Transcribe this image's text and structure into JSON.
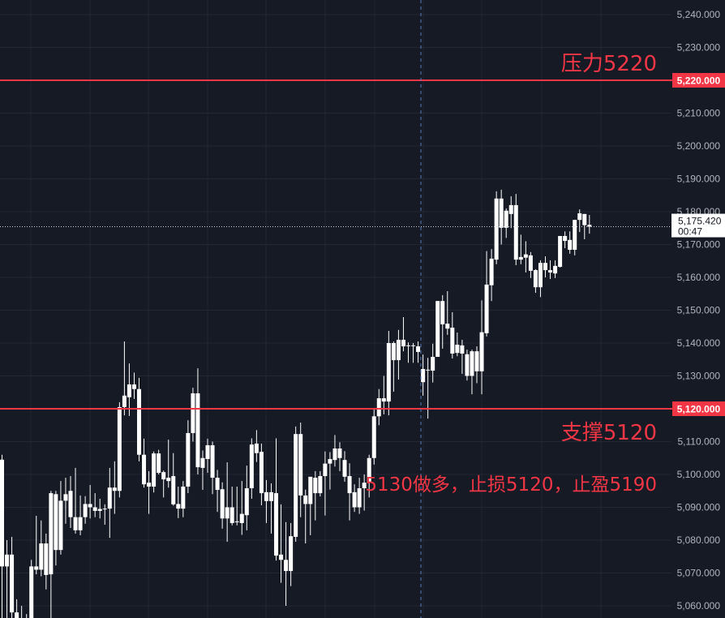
{
  "chart_data": {
    "type": "candlestick",
    "ylim": [
      5057,
      5245
    ],
    "y_ticks": [
      "5,060.000",
      "5,070.000",
      "5,080.000",
      "5,090.000",
      "5,100.000",
      "5,110.000",
      "5,120.000",
      "5,130.000",
      "5,140.000",
      "5,150.000",
      "5,160.000",
      "5,170.000",
      "5,180.000",
      "5,190.000",
      "5,200.000",
      "5,210.000",
      "5,220.000",
      "5,230.000",
      "5,240.000"
    ],
    "y_tick_values": [
      5060,
      5070,
      5080,
      5090,
      5100,
      5110,
      5120,
      5130,
      5140,
      5150,
      5160,
      5170,
      5180,
      5190,
      5200,
      5210,
      5220,
      5230,
      5240
    ],
    "grid": true,
    "candle_color": "#ffffff",
    "ohlc_order": [
      "open",
      "high",
      "low",
      "close"
    ],
    "ohlc": [
      [
        5072,
        5106,
        5052,
        5104.5
      ],
      [
        5075.6,
        5080,
        5052,
        5072
      ],
      [
        5075.6,
        5081,
        5050,
        5058
      ],
      [
        5058,
        5062,
        5048,
        5052
      ],
      [
        5052,
        5060,
        5048,
        5054
      ],
      [
        5054,
        5057.5,
        5048,
        5056
      ],
      [
        5056,
        5074,
        5052,
        5072
      ],
      [
        5072,
        5087.4,
        5069.6,
        5071
      ],
      [
        5071,
        5086,
        5069,
        5079
      ],
      [
        5079,
        5082,
        5065,
        5069.4
      ],
      [
        5069.6,
        5095,
        5056,
        5094.3
      ],
      [
        5094,
        5095,
        5072.3,
        5077
      ],
      [
        5077,
        5098,
        5075.6,
        5092
      ],
      [
        5092,
        5099,
        5085,
        5094
      ],
      [
        5095,
        5099.5,
        5083.7,
        5087
      ],
      [
        5087,
        5102,
        5082,
        5083
      ],
      [
        5083,
        5093.6,
        5081.5,
        5087
      ],
      [
        5087,
        5093.4,
        5085,
        5091
      ],
      [
        5090,
        5096.8,
        5086.6,
        5091
      ],
      [
        5090,
        5094.3,
        5087,
        5088.9
      ],
      [
        5089.5,
        5092.6,
        5086.6,
        5088.9
      ],
      [
        5089.6,
        5090.9,
        5084.7,
        5089.6
      ],
      [
        5089.6,
        5102,
        5080.7,
        5096
      ],
      [
        5096,
        5104,
        5088,
        5095
      ],
      [
        5095,
        5122,
        5093,
        5120.5
      ],
      [
        5120.5,
        5140.5,
        5118,
        5124
      ],
      [
        5123.5,
        5133.8,
        5117.8,
        5127.4
      ],
      [
        5127.4,
        5131,
        5123,
        5126
      ],
      [
        5126,
        5129.4,
        5104,
        5106
      ],
      [
        5106,
        5110.9,
        5096,
        5097
      ],
      [
        5097.5,
        5101,
        5088,
        5096.3
      ],
      [
        5096.3,
        5107,
        5094.5,
        5106.4
      ],
      [
        5106.4,
        5107.5,
        5100,
        5100.5
      ],
      [
        5100.7,
        5101.2,
        5093,
        5098.5
      ],
      [
        5099,
        5110.6,
        5096,
        5098
      ],
      [
        5099.5,
        5106.5,
        5090.5,
        5090.9
      ],
      [
        5091,
        5096.3,
        5086.7,
        5089.6
      ],
      [
        5089.6,
        5098,
        5087,
        5096.3
      ],
      [
        5096.3,
        5116.5,
        5094.3,
        5112.6
      ],
      [
        5112.6,
        5126.4,
        5110,
        5124.7
      ],
      [
        5124.7,
        5132.3,
        5100,
        5102.2
      ],
      [
        5105,
        5107.3,
        5095.3,
        5102
      ],
      [
        5104.7,
        5110.9,
        5100.5,
        5108.9
      ],
      [
        5108.9,
        5110,
        5094,
        5099
      ],
      [
        5099,
        5101.4,
        5088.6,
        5095.3
      ],
      [
        5095.5,
        5097.6,
        5083.5,
        5086.6
      ],
      [
        5086.6,
        5103.7,
        5079.5,
        5090
      ],
      [
        5090,
        5096.3,
        5084.5,
        5085.2
      ],
      [
        5085.7,
        5096.3,
        5084.5,
        5085.7
      ],
      [
        5085.2,
        5098,
        5081.6,
        5088
      ],
      [
        5087.6,
        5102.7,
        5083,
        5095.8
      ],
      [
        5095.8,
        5111,
        5092.6,
        5109.1
      ],
      [
        5109.4,
        5113.5,
        5103.8,
        5106.5
      ],
      [
        5106.9,
        5109.4,
        5090.6,
        5094.3
      ],
      [
        5094.6,
        5098.3,
        5085.2,
        5091.9
      ],
      [
        5091.9,
        5097.3,
        5082,
        5094.6
      ],
      [
        5094.3,
        5111,
        5073.8,
        5075.3
      ],
      [
        5075.6,
        5090.9,
        5067,
        5074
      ],
      [
        5074,
        5085.5,
        5060,
        5070.6
      ],
      [
        5070.6,
        5085.2,
        5066,
        5081.2
      ],
      [
        5081,
        5114.6,
        5079.5,
        5112.3
      ],
      [
        5112.3,
        5115.8,
        5087,
        5093.6
      ],
      [
        5093.6,
        5095.4,
        5079,
        5091
      ],
      [
        5091,
        5098,
        5081.5,
        5099.3
      ],
      [
        5099,
        5101,
        5086,
        5094.3
      ],
      [
        5094.3,
        5101,
        5093.3,
        5099.5
      ],
      [
        5099.5,
        5107,
        5087.5,
        5103.3
      ],
      [
        5103.3,
        5106.8,
        5095.4,
        5104.7
      ],
      [
        5104.4,
        5112,
        5102.4,
        5107.9
      ],
      [
        5107.9,
        5109.8,
        5101,
        5105
      ],
      [
        5104.4,
        5107.1,
        5097.8,
        5099.3
      ],
      [
        5099.5,
        5103.4,
        5086,
        5094.3
      ],
      [
        5094.6,
        5097,
        5088.6,
        5090
      ],
      [
        5090,
        5099,
        5088,
        5095.8
      ],
      [
        5095.8,
        5100,
        5089,
        5097.5
      ],
      [
        5097.5,
        5106,
        5093,
        5105
      ],
      [
        5105,
        5120,
        5103,
        5117.7
      ],
      [
        5117.7,
        5126,
        5115,
        5123.2
      ],
      [
        5123.2,
        5130,
        5118.3,
        5122.2
      ],
      [
        5122.2,
        5143.7,
        5118,
        5140
      ],
      [
        5140,
        5140.5,
        5125.2,
        5134.8
      ],
      [
        5134.8,
        5144,
        5128.9,
        5141
      ],
      [
        5141,
        5147.9,
        5137.5,
        5139
      ],
      [
        5139.3,
        5140.2,
        5134,
        5139.3
      ],
      [
        5139.3,
        5140,
        5134,
        5139.3
      ],
      [
        5139,
        5140.5,
        5134,
        5137.3
      ],
      [
        5132.1,
        5136.5,
        5124,
        5128.1
      ],
      [
        5131.9,
        5135.5,
        5117,
        5131.9
      ],
      [
        5131.6,
        5139.8,
        5128,
        5135.8
      ],
      [
        5135.8,
        5152.8,
        5135.8,
        5152.8
      ],
      [
        5152.8,
        5154.6,
        5138.3,
        5145.7
      ],
      [
        5145.9,
        5155.8,
        5142.5,
        5144.4
      ],
      [
        5144.7,
        5149.4,
        5135.3,
        5136.8
      ],
      [
        5137,
        5143.2,
        5136,
        5139.5
      ],
      [
        5139.3,
        5141,
        5130.6,
        5136.8
      ],
      [
        5136.6,
        5138,
        5128.6,
        5130
      ],
      [
        5130,
        5138,
        5124.4,
        5137.5
      ],
      [
        5137.5,
        5139,
        5127.8,
        5131.4
      ],
      [
        5131.4,
        5153,
        5124.4,
        5143.3
      ],
      [
        5143,
        5168,
        5142,
        5157.8
      ],
      [
        5157.6,
        5168.6,
        5152.8,
        5165.7
      ],
      [
        5165.4,
        5186.2,
        5164,
        5184
      ],
      [
        5184,
        5186.7,
        5170,
        5175.1
      ],
      [
        5175.1,
        5181,
        5172,
        5180.3
      ],
      [
        5179.3,
        5184.7,
        5175,
        5182
      ],
      [
        5182,
        5185.4,
        5163.7,
        5165.4
      ],
      [
        5165.4,
        5173,
        5164,
        5166.2
      ],
      [
        5166,
        5171,
        5161.5,
        5167
      ],
      [
        5166.7,
        5167.7,
        5159.8,
        5162
      ],
      [
        5162.2,
        5162.5,
        5155.3,
        5157
      ],
      [
        5157,
        5165.2,
        5154,
        5164.4
      ],
      [
        5164.4,
        5166.4,
        5160,
        5162.2
      ],
      [
        5162.2,
        5165.2,
        5159.5,
        5161.5
      ],
      [
        5161.2,
        5165.2,
        5159.8,
        5163.5
      ],
      [
        5163.2,
        5172.6,
        5163,
        5172.6
      ],
      [
        5172.6,
        5174,
        5168.9,
        5171.1
      ],
      [
        5171.4,
        5174,
        5167.2,
        5168.4
      ],
      [
        5168.4,
        5177.5,
        5166.7,
        5177.5
      ],
      [
        5177.5,
        5180.7,
        5173.8,
        5179.5
      ],
      [
        5179.3,
        5179.3,
        5171.6,
        5175.9
      ],
      [
        5176,
        5179,
        5173.3,
        5175.42
      ]
    ],
    "horizontal_lines": [
      {
        "price": 5220,
        "label": "5,220.000",
        "color": "#f23645"
      },
      {
        "price": 5120,
        "label": "5,120.000",
        "color": "#f23645"
      }
    ],
    "last_price": {
      "value": 5175.42,
      "label": "5,175.420",
      "countdown": "00:47"
    },
    "annotations": {
      "resistance": "压力5220",
      "support": "支撑5120",
      "plan": "5130做多，止损5120，止盈5190"
    }
  },
  "colors": {
    "background": "#161a25",
    "grid": "#232734",
    "level_line": "#f23645",
    "crosshair": "#5b7cc0",
    "axis_text": "#b2b5be"
  }
}
